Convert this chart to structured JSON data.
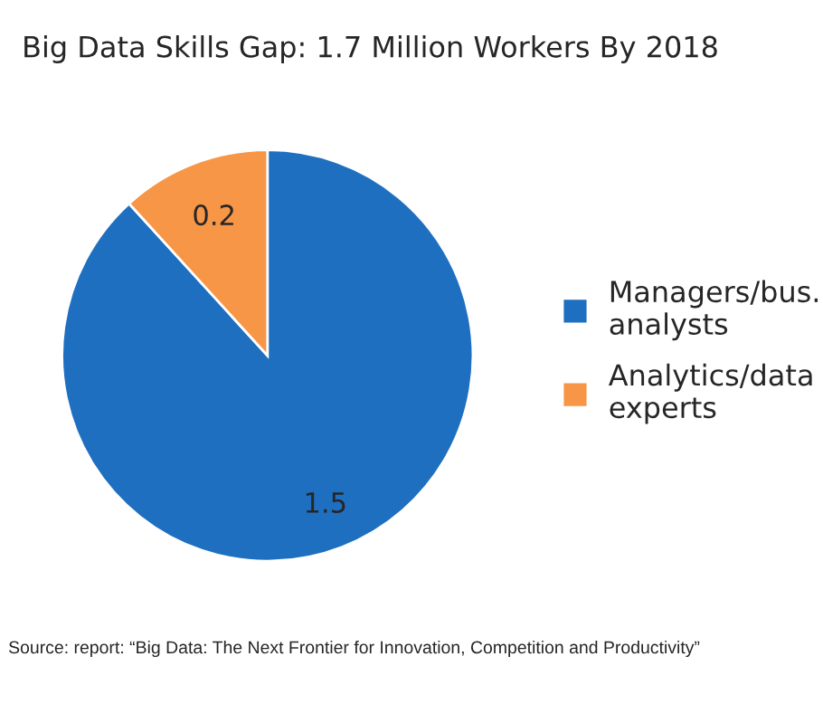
{
  "chart_data": {
    "type": "pie",
    "title": "Big Data Skills Gap: 1.7 Million Workers By 2018",
    "categories": [
      "Managers/bus. analysts",
      "Analytics/data experts"
    ],
    "values": [
      1.5,
      0.2
    ],
    "colors": [
      "#1f6fc0",
      "#f79646"
    ],
    "data_labels": true,
    "legend": "right",
    "annotations": [
      "Source: report: “Big Data: The Next Frontier for Innovation, Competition and Productivity”"
    ]
  }
}
